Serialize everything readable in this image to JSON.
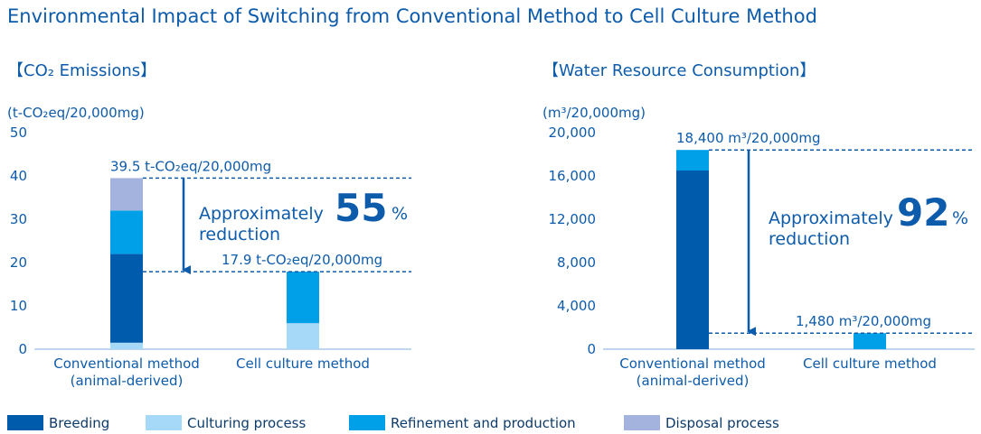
{
  "title": "Environmental Impact of Switching from Conventional Method to Cell Culture Method",
  "legend": [
    {
      "name": "Breeding",
      "color": "#005bac"
    },
    {
      "name": "Culturing process",
      "color": "#a6d8f7"
    },
    {
      "name": "Refinement and production",
      "color": "#00a0e9"
    },
    {
      "name": "Disposal process",
      "color": "#a3b3de"
    }
  ],
  "chart_data": [
    {
      "type": "bar",
      "stacked": true,
      "title": "【CO₂ Emissions】",
      "ylabel": "(t-CO₂eq/20,000mg)",
      "ylim": [
        0,
        50
      ],
      "yticks": [
        "0",
        "10",
        "20",
        "30",
        "40",
        "50"
      ],
      "categories": [
        "Conventional method (animal-derived)",
        "Cell culture method"
      ],
      "category_lines": [
        [
          "Conventional method",
          "(animal-derived)"
        ],
        [
          "Cell culture method"
        ]
      ],
      "series": [
        {
          "name": "Culturing process",
          "values": [
            1.5,
            6.0
          ]
        },
        {
          "name": "Breeding",
          "values": [
            20.5,
            0
          ]
        },
        {
          "name": "Refinement and production",
          "values": [
            10.0,
            11.9
          ]
        },
        {
          "name": "Disposal process",
          "values": [
            7.5,
            0
          ]
        }
      ],
      "totals": [
        39.5,
        17.9
      ],
      "total_labels": [
        "39.5 t-CO₂eq/20,000mg",
        "17.9 t-CO₂eq/20,000mg"
      ],
      "reduction": {
        "prefix": "Approximately",
        "value": "55",
        "unit": "%",
        "suffix": "reduction"
      }
    },
    {
      "type": "bar",
      "stacked": true,
      "title": "【Water Resource Consumption】",
      "ylabel": "(m³/20,000mg)",
      "ylim": [
        0,
        20000
      ],
      "yticks": [
        "0",
        "4,000",
        "8,000",
        "12,000",
        "16,000",
        "20,000"
      ],
      "categories": [
        "Conventional method (animal-derived)",
        "Cell culture method"
      ],
      "category_lines": [
        [
          "Conventional method",
          "(animal-derived)"
        ],
        [
          "Cell culture method"
        ]
      ],
      "series": [
        {
          "name": "Culturing process",
          "values": [
            0,
            0
          ]
        },
        {
          "name": "Breeding",
          "values": [
            16500,
            0
          ]
        },
        {
          "name": "Refinement and production",
          "values": [
            1900,
            1480
          ]
        },
        {
          "name": "Disposal process",
          "values": [
            0,
            0
          ]
        }
      ],
      "totals": [
        18400,
        1480
      ],
      "total_labels": [
        "18,400 m³/20,000mg",
        "1,480 m³/20,000mg"
      ],
      "reduction": {
        "prefix": "Approximately",
        "value": "92",
        "unit": "%",
        "suffix": "reduction"
      }
    }
  ]
}
